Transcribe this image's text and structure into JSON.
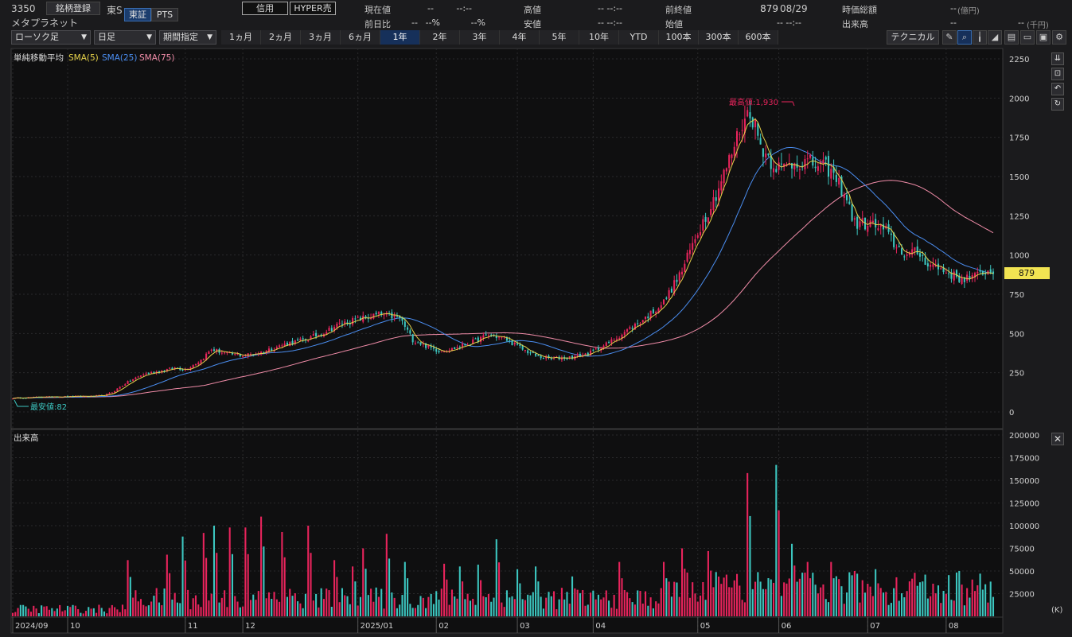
{
  "header": {
    "code": "3350",
    "register_button": "銘柄登録",
    "market": "東S",
    "exchange_active": "東証",
    "exchange_alt": "PTS",
    "name": "メタプラネット",
    "credit_button": "信用",
    "hyper_button": "HYPER売"
  },
  "quote": {
    "current_label": "現在値",
    "current_value": "--",
    "current_time": "--:--",
    "change_label": "前日比",
    "change_value": "--",
    "change_pct": "--%",
    "change_pct2": "--%",
    "high_label": "高値",
    "high_value": "-- --:--",
    "low_label": "安値",
    "low_value": "-- --:--",
    "prev_close_label": "前終値",
    "prev_close_value": "879",
    "prev_close_date": "08/29",
    "open_label": "始値",
    "open_value": "-- --:--",
    "mktcap_label": "時価総額",
    "mktcap_value": "--",
    "mktcap_unit": "(億円)",
    "volume_label": "出来高",
    "volume_value": "--",
    "volume_value2": "--",
    "volume_unit": "(千円)"
  },
  "toolbar": {
    "chart_type": "ローソク足",
    "interval": "日足",
    "period": "期間指定",
    "ranges": [
      "1ヵ月",
      "2ヵ月",
      "3ヵ月",
      "6ヵ月",
      "1年",
      "2年",
      "3年",
      "4年",
      "5年",
      "10年",
      "YTD",
      "100本",
      "300本",
      "600本"
    ],
    "active_range": "1年",
    "technical_button": "テクニカル"
  },
  "main_panel": {
    "indicator_title": "単純移動平均",
    "sma5": "SMA(5)",
    "sma25": "SMA(25)",
    "sma75": "SMA(75)",
    "high_annot": "最高値:1,930",
    "low_annot": "最安値:82",
    "last_price_label": "879"
  },
  "volume_panel": {
    "title": "出来高",
    "unit": "(K)"
  },
  "colors": {
    "up": "#e8245c",
    "down": "#3cc6c0",
    "sma5": "#e6d24a",
    "sma25": "#4a8df0",
    "sma75": "#f08ca8",
    "bg": "#0f0f10"
  },
  "chart_data": [
    {
      "type": "candlestick",
      "title": "単純移動平均",
      "y_ticks": [
        2250,
        2000,
        1750,
        1500,
        1250,
        1000,
        750,
        500,
        250,
        0
      ],
      "ylim": [
        0,
        2250
      ],
      "x_labels": [
        "2024/09",
        "10",
        "11",
        "12",
        "2025/01",
        "02",
        "03",
        "04",
        "05",
        "06",
        "07",
        "08"
      ],
      "price_anchors": [
        [
          0,
          88
        ],
        [
          10,
          95
        ],
        [
          20,
          98
        ],
        [
          30,
          100
        ],
        [
          35,
          105
        ],
        [
          38,
          125
        ],
        [
          42,
          170
        ],
        [
          45,
          200
        ],
        [
          50,
          240
        ],
        [
          56,
          260
        ],
        [
          62,
          280
        ],
        [
          66,
          270
        ],
        [
          72,
          330
        ],
        [
          76,
          400
        ],
        [
          82,
          370
        ],
        [
          88,
          360
        ],
        [
          95,
          380
        ],
        [
          100,
          410
        ],
        [
          106,
          440
        ],
        [
          112,
          460
        ],
        [
          118,
          500
        ],
        [
          125,
          560
        ],
        [
          132,
          590
        ],
        [
          140,
          620
        ],
        [
          148,
          600
        ],
        [
          153,
          460
        ],
        [
          158,
          420
        ],
        [
          163,
          390
        ],
        [
          168,
          400
        ],
        [
          175,
          440
        ],
        [
          182,
          490
        ],
        [
          188,
          470
        ],
        [
          195,
          400
        ],
        [
          201,
          350
        ],
        [
          206,
          340
        ],
        [
          214,
          350
        ],
        [
          220,
          370
        ],
        [
          228,
          440
        ],
        [
          235,
          520
        ],
        [
          242,
          600
        ],
        [
          249,
          700
        ],
        [
          256,
          900
        ],
        [
          262,
          1150
        ],
        [
          268,
          1350
        ],
        [
          274,
          1600
        ],
        [
          278,
          1800
        ],
        [
          282,
          1930
        ],
        [
          286,
          1700
        ],
        [
          290,
          1600
        ],
        [
          294,
          1550
        ],
        [
          300,
          1600
        ],
        [
          306,
          1580
        ],
        [
          312,
          1550
        ],
        [
          318,
          1400
        ],
        [
          322,
          1200
        ],
        [
          328,
          1200
        ],
        [
          334,
          1150
        ],
        [
          338,
          1050
        ],
        [
          342,
          1000
        ],
        [
          346,
          1020
        ],
        [
          350,
          950
        ],
        [
          356,
          900
        ],
        [
          362,
          850
        ],
        [
          368,
          860
        ],
        [
          372,
          900
        ],
        [
          375,
          879
        ]
      ],
      "last_price": 879,
      "high": 1930,
      "low": 82,
      "series": [
        {
          "name": "SMA(5)"
        },
        {
          "name": "SMA(25)"
        },
        {
          "name": "SMA(75)"
        }
      ]
    },
    {
      "type": "bar",
      "title": "出来高",
      "unit": "(K)",
      "y_ticks": [
        200000,
        175000,
        150000,
        125000,
        100000,
        75000,
        50000,
        25000
      ],
      "ylim": [
        0,
        200000
      ],
      "spikes": [
        [
          44,
          62000
        ],
        [
          59,
          68000
        ],
        [
          65,
          88000
        ],
        [
          73,
          92000
        ],
        [
          77,
          100000
        ],
        [
          83,
          98000
        ],
        [
          89,
          98000
        ],
        [
          95,
          110000
        ],
        [
          103,
          93000
        ],
        [
          113,
          100000
        ],
        [
          123,
          62000
        ],
        [
          130,
          55000
        ],
        [
          134,
          75000
        ],
        [
          143,
          91000
        ],
        [
          150,
          60000
        ],
        [
          165,
          58000
        ],
        [
          171,
          55000
        ],
        [
          178,
          57000
        ],
        [
          185,
          85000
        ],
        [
          193,
          52000
        ],
        [
          200,
          55000
        ],
        [
          214,
          44000
        ],
        [
          232,
          60000
        ],
        [
          249,
          60000
        ],
        [
          256,
          75000
        ],
        [
          266,
          72000
        ],
        [
          273,
          46000
        ],
        [
          281,
          158000
        ],
        [
          292,
          167000
        ],
        [
          298,
          80000
        ],
        [
          304,
          60000
        ],
        [
          313,
          60000
        ],
        [
          322,
          50000
        ],
        [
          330,
          52000
        ],
        [
          345,
          48000
        ],
        [
          362,
          50000
        ]
      ]
    }
  ]
}
